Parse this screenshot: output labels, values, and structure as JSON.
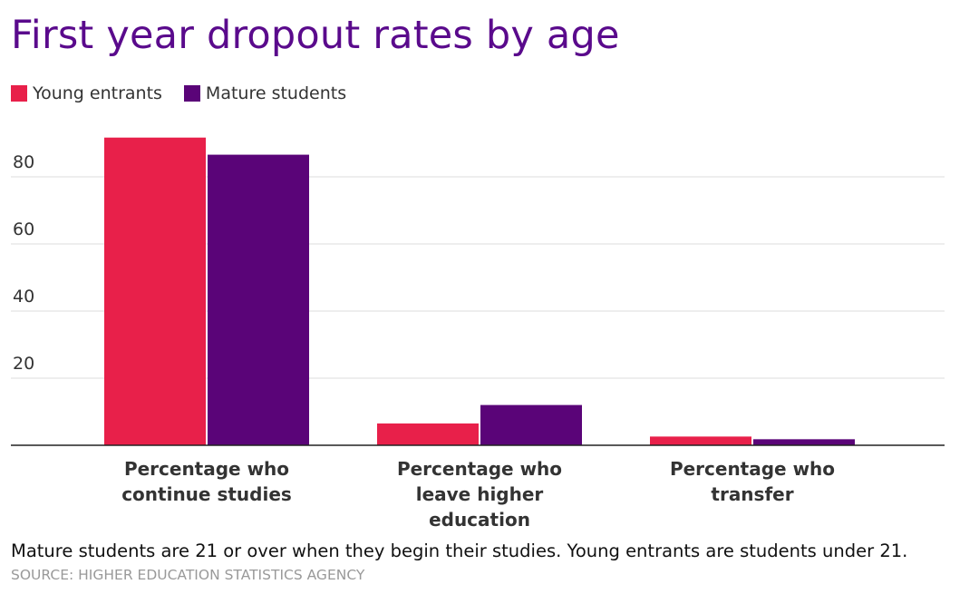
{
  "title": "First year dropout rates by age",
  "note": "Mature students are 21 or over when they begin their studies. Young entrants are students under 21.",
  "source": "SOURCE: HIGHER EDUCATION STATISTICS AGENCY",
  "colors": {
    "young": "#e8204a",
    "mature": "#5a0478",
    "title": "#5a0a8c"
  },
  "chart_data": {
    "type": "bar",
    "title": "First year dropout rates by age",
    "categories": [
      "Percentage who continue studies",
      "Percentage who leave higher education",
      "Percentage who transfer"
    ],
    "category_lines": [
      [
        "Percentage who",
        "continue studies"
      ],
      [
        "Percentage who",
        "leave higher",
        "education"
      ],
      [
        "Percentage who",
        "transfer"
      ]
    ],
    "series": [
      {
        "name": "Young entrants",
        "values": [
          91.7,
          6.5,
          2.6
        ]
      },
      {
        "name": "Mature students",
        "values": [
          86.6,
          12.0,
          1.8
        ]
      }
    ],
    "yticks": [
      "20",
      "40",
      "60",
      "80"
    ],
    "ylim": [
      0,
      100
    ],
    "grid": true,
    "legend": "top-left"
  }
}
